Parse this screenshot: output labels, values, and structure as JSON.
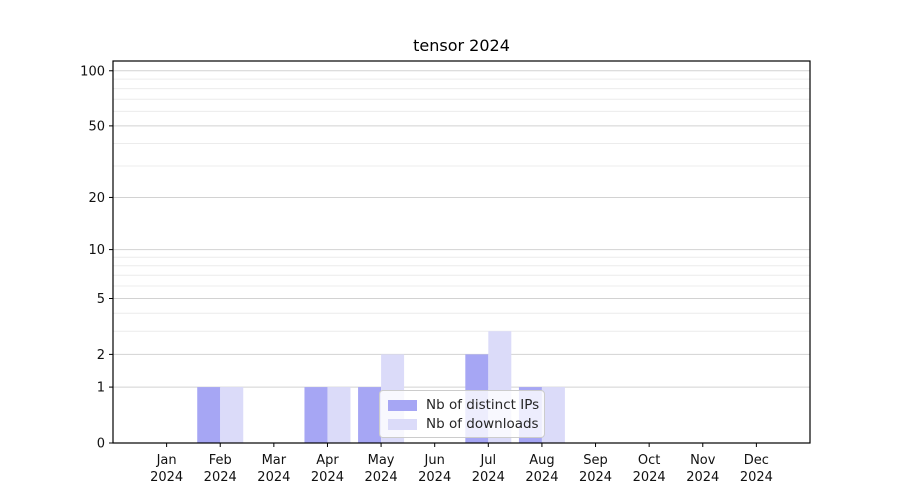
{
  "chart_data": {
    "type": "bar",
    "title": "tensor 2024",
    "categories": [
      "Jan",
      "Feb",
      "Mar",
      "Apr",
      "May",
      "Jun",
      "Jul",
      "Aug",
      "Sep",
      "Oct",
      "Nov",
      "Dec"
    ],
    "category_year": "2024",
    "series": [
      {
        "name": "Nb of distinct IPs",
        "color": "#a6a6f4",
        "values": [
          0,
          1,
          0,
          1,
          1,
          0,
          2,
          1,
          0,
          0,
          0,
          0
        ]
      },
      {
        "name": "Nb of downloads",
        "color": "#dbdbf9",
        "values": [
          0,
          1,
          0,
          1,
          2,
          0,
          3,
          1,
          0,
          0,
          0,
          0
        ]
      }
    ],
    "xlabel": "",
    "ylabel": "",
    "y_scale": "log1p",
    "ylim": [
      0,
      113
    ],
    "y_ticks": [
      0,
      1,
      2,
      5,
      10,
      20,
      50,
      100
    ],
    "y_minor_gridlines": [
      3,
      4,
      6,
      7,
      8,
      9,
      30,
      40,
      60,
      70,
      80,
      90
    ],
    "grid": "on",
    "legend_position": "lower center"
  },
  "colors": {
    "major_grid": "#d2d2d2",
    "minor_grid": "#ececec",
    "axis": "#000000",
    "tick_text": "#111111",
    "legend_border": "#cccccc"
  }
}
